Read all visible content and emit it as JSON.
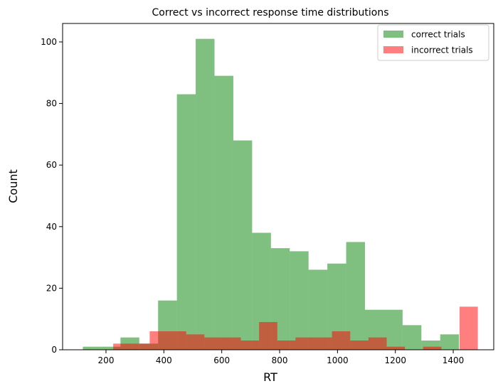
{
  "chart_data": {
    "type": "bar",
    "title": "Correct vs incorrect response time distributions",
    "xlabel": "RT",
    "ylabel": "Count",
    "xlim": [
      50,
      1540
    ],
    "ylim": [
      0,
      106
    ],
    "xticks": [
      200,
      400,
      600,
      800,
      1000,
      1200,
      1400
    ],
    "yticks": [
      0,
      20,
      40,
      60,
      80,
      100
    ],
    "grid": false,
    "legend_position": "top-right",
    "series": [
      {
        "name": "correct trials",
        "color": "#008000",
        "opacity": 0.5,
        "bin_edges": [
          120,
          185,
          250,
          315,
          380,
          445,
          510,
          575,
          640,
          705,
          770,
          835,
          900,
          965,
          1030,
          1095,
          1160,
          1225,
          1290,
          1355,
          1420
        ],
        "counts": [
          1,
          1,
          4,
          2,
          16,
          83,
          101,
          89,
          68,
          38,
          33,
          32,
          26,
          28,
          35,
          13,
          13,
          8,
          3,
          5
        ]
      },
      {
        "name": "incorrect trials",
        "color": "#ff0000",
        "opacity": 0.5,
        "bin_edges": [
          225,
          288,
          351,
          414,
          477,
          540,
          603,
          666,
          729,
          792,
          855,
          918,
          981,
          1044,
          1107,
          1170,
          1233,
          1296,
          1359,
          1422,
          1485
        ],
        "counts": [
          2,
          2,
          6,
          6,
          5,
          4,
          4,
          3,
          9,
          3,
          4,
          4,
          6,
          3,
          4,
          1,
          0,
          1,
          0,
          14
        ]
      }
    ]
  }
}
